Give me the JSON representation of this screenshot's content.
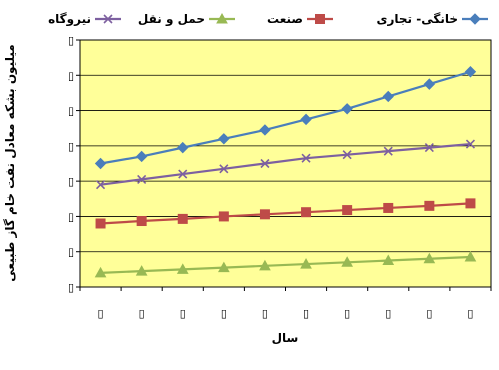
{
  "chart_data": {
    "type": "line",
    "title": "",
    "xlabel": "سال",
    "ylabel": "میلیون بشکه معادل نفت خام گاز طبیعی",
    "x": [
      "▯",
      "▯",
      "▯",
      "▯",
      "▯",
      "▯",
      "▯",
      "▯",
      "▯",
      "▯"
    ],
    "yticks": [
      "▯",
      "▯",
      "▯",
      "▯",
      "▯",
      "▯",
      "▯",
      "▯"
    ],
    "ylim": [
      0,
      7
    ],
    "grid": true,
    "legend_position": "top",
    "background": "#FFFF99",
    "series": [
      {
        "name": "خانگی- تجاری",
        "color": "#4A7EBB",
        "marker": "diamond",
        "values": [
          3.5,
          3.7,
          3.95,
          4.2,
          4.45,
          4.75,
          5.05,
          5.4,
          5.75,
          6.1
        ]
      },
      {
        "name": "صنعت",
        "color": "#BE4B48",
        "marker": "square",
        "values": [
          1.8,
          1.87,
          1.93,
          2.0,
          2.06,
          2.12,
          2.18,
          2.24,
          2.3,
          2.37
        ]
      },
      {
        "name": "حمل و نقل",
        "color": "#98B954",
        "marker": "triangle",
        "values": [
          0.4,
          0.45,
          0.5,
          0.55,
          0.6,
          0.65,
          0.7,
          0.75,
          0.8,
          0.85
        ]
      },
      {
        "name": "نیروگاه",
        "color": "#7D60A0",
        "marker": "cross",
        "values": [
          2.9,
          3.05,
          3.2,
          3.35,
          3.5,
          3.65,
          3.75,
          3.85,
          3.95,
          4.05
        ]
      }
    ]
  }
}
